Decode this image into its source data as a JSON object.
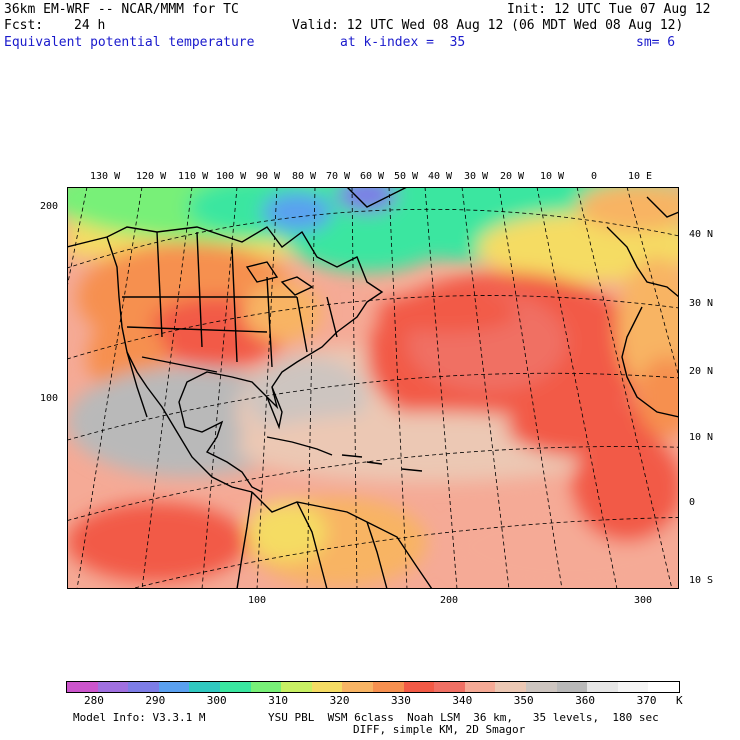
{
  "header": {
    "model": "36km EM-WRF -- NCAR/MMM for TC",
    "init": "Init: 12 UTC Tue 07 Aug 12",
    "fcst_label": "Fcst:",
    "fcst_value": "24 h",
    "valid": "Valid: 12 UTC Wed 08 Aug 12 (06 MDT Wed 08 Aug 12)",
    "field": "Equivalent potential temperature",
    "level": "at k-index =  35",
    "smooth": "sm= 6"
  },
  "map": {
    "lon_labels": [
      "130 W",
      "120 W",
      "110 W",
      "100 W",
      "90 W",
      "80 W",
      "70 W",
      "60 W",
      "50 W",
      "40 W",
      "30 W",
      "20 W",
      "10 W",
      "0",
      "10 E"
    ],
    "lat_labels": [
      "40 N",
      "30 N",
      "20 N",
      "10 N",
      "0",
      "10 S"
    ],
    "grid_y_labels": [
      "200",
      "100"
    ],
    "grid_x_labels": [
      "100",
      "200",
      "300"
    ]
  },
  "colorbar": {
    "colors": [
      "#cc55cc",
      "#a070e0",
      "#7d7de6",
      "#5aa0f0",
      "#30c8c0",
      "#3ae6a0",
      "#78f078",
      "#c8f064",
      "#f5dc64",
      "#f8b464",
      "#f69050",
      "#f25a46",
      "#f07064",
      "#f5aa96",
      "#ecc8b4",
      "#cdc5c0",
      "#b9b9b9",
      "#e6e6e6",
      "#f5f5f5",
      "#ffffff"
    ],
    "labels": [
      "280",
      "290",
      "300",
      "310",
      "320",
      "330",
      "340",
      "350",
      "360",
      "370"
    ],
    "unit": "K"
  },
  "footer": {
    "line1_left": "Model Info: V3.3.1 M",
    "line1_right": "YSU PBL  WSM 6class  Noah LSM  36 km,   35 levels,  180 sec",
    "line2": "DIFF, simple KM, 2D Smagor"
  }
}
